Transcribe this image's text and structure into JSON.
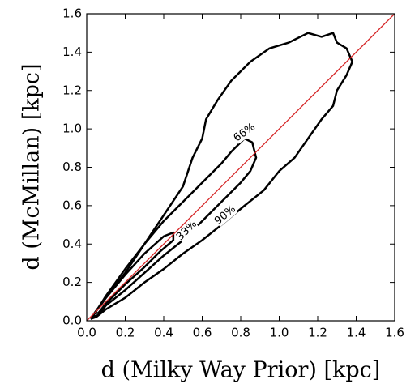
{
  "chart_data": {
    "type": "contour",
    "xlabel": "d (Milky Way Prior) [kpc]",
    "ylabel": "d (McMillan) [kpc]",
    "xlim": [
      0,
      1.6
    ],
    "ylim": [
      0,
      1.6
    ],
    "xticks": [
      {
        "value": 0,
        "label": "0.0"
      },
      0.2,
      0.4,
      0.6,
      0.8,
      {
        "value": 1,
        "label": "1.0"
      },
      1.2,
      1.4,
      1.6
    ],
    "yticks": [
      {
        "value": 0,
        "label": "0.0"
      },
      0.2,
      0.4,
      0.6,
      0.8,
      {
        "value": 1,
        "label": "1.0"
      },
      1.2,
      1.4,
      1.6
    ],
    "reference_line": {
      "x": [
        0,
        1.6
      ],
      "y": [
        0,
        1.6
      ],
      "color": "#d62728"
    },
    "series": [
      {
        "name": "33%",
        "color": "#000000",
        "x": [
          0.04,
          0.1,
          0.2,
          0.3,
          0.4,
          0.45,
          0.45,
          0.38,
          0.3,
          0.2,
          0.1,
          0.06,
          0.04
        ],
        "y": [
          0.04,
          0.12,
          0.24,
          0.35,
          0.44,
          0.46,
          0.42,
          0.36,
          0.28,
          0.19,
          0.09,
          0.04,
          0.04
        ]
      },
      {
        "name": "66%",
        "color": "#000000",
        "x": [
          0.03,
          0.1,
          0.2,
          0.3,
          0.4,
          0.5,
          0.6,
          0.7,
          0.75,
          0.82,
          0.86,
          0.88,
          0.85,
          0.8,
          0.7,
          0.6,
          0.5,
          0.4,
          0.3,
          0.2,
          0.1,
          0.06,
          0.03
        ],
        "y": [
          0.02,
          0.13,
          0.27,
          0.4,
          0.52,
          0.62,
          0.72,
          0.82,
          0.88,
          0.95,
          0.93,
          0.85,
          0.78,
          0.72,
          0.62,
          0.52,
          0.42,
          0.34,
          0.25,
          0.16,
          0.08,
          0.03,
          0.02
        ]
      },
      {
        "name": "90%",
        "color": "#000000",
        "x": [
          0.02,
          0.1,
          0.2,
          0.3,
          0.4,
          0.5,
          0.55,
          0.6,
          0.62,
          0.68,
          0.75,
          0.85,
          0.95,
          1.05,
          1.15,
          1.22,
          1.28,
          1.3,
          1.35,
          1.38,
          1.35,
          1.3,
          1.28,
          1.22,
          1.15,
          1.08,
          1.0,
          0.92,
          0.82,
          0.7,
          0.6,
          0.5,
          0.4,
          0.3,
          0.2,
          0.1,
          0.05,
          0.02
        ],
        "y": [
          0.01,
          0.12,
          0.25,
          0.4,
          0.55,
          0.7,
          0.85,
          0.95,
          1.05,
          1.15,
          1.25,
          1.35,
          1.42,
          1.45,
          1.5,
          1.48,
          1.5,
          1.45,
          1.42,
          1.35,
          1.28,
          1.2,
          1.12,
          1.05,
          0.95,
          0.85,
          0.78,
          0.68,
          0.6,
          0.5,
          0.42,
          0.35,
          0.27,
          0.2,
          0.12,
          0.06,
          0.02,
          0.01
        ]
      }
    ]
  }
}
